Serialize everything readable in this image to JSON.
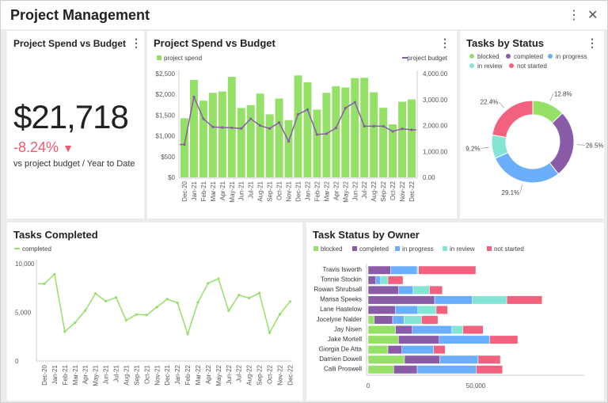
{
  "app": {
    "title": "Project Management",
    "more_icon": "kebab-icon",
    "close_icon": "close-icon"
  },
  "kpi": {
    "title": "Project Spend vs Budget",
    "value": "$21,718",
    "delta": "-8.24%",
    "delta_icon": "triangle-down-icon",
    "delta_color": "#ef5a6f",
    "caption": "vs project budget / Year to Date"
  },
  "chart_data": [
    {
      "type": "bar",
      "title": "Project Spend vs Budget",
      "categories": [
        "Dec-20",
        "Jan-21",
        "Feb-21",
        "Mar-21",
        "Apr-21",
        "May-21",
        "Jun-21",
        "Jul-21",
        "Aug-21",
        "Sep-21",
        "Oct-21",
        "Nov-21",
        "Dec-21",
        "Jan-22",
        "Feb-22",
        "Mar-22",
        "Apr-22",
        "May-22",
        "Jun-22",
        "Jul-22",
        "Aug-22",
        "Sep-22",
        "Oct-22",
        "Nov-22",
        "Dec-22"
      ],
      "series": [
        {
          "name": "project spend",
          "type": "bar",
          "axis": "left",
          "color": "#95e066",
          "values": [
            1424,
            2348,
            1848,
            2038,
            2070,
            2424,
            1671,
            1740,
            2019,
            1519,
            1899,
            1380,
            2456,
            2291,
            1633,
            2038,
            2196,
            2165,
            2392,
            2399,
            2051,
            1677,
            1278,
            1823,
            1880
          ]
        },
        {
          "name": "project budget",
          "type": "line",
          "axis": "right",
          "color": "#8a5ca8",
          "values": [
            1266,
            3099,
            2258,
            1944,
            1924,
            1914,
            1884,
            2258,
            1995,
            1884,
            2116,
            1387,
            2430,
            2613,
            1651,
            1681,
            1904,
            2673,
            2896,
            1975,
            1975,
            1975,
            1772,
            1873,
            1833
          ]
        }
      ],
      "ylim_left": [
        0,
        2500
      ],
      "yticks_left": [
        "$0",
        "$500",
        "$1,000",
        "$1,500",
        "$2,000",
        "$2,500"
      ],
      "ylim_right": [
        0,
        4000
      ],
      "yticks_right": [
        "0.00",
        "1,000.00",
        "2,000.00",
        "3,000.00",
        "4,000.00"
      ],
      "legend": "top"
    },
    {
      "type": "pie",
      "title": "Tasks by Status",
      "donut": true,
      "labels": [
        "blocked",
        "completed",
        "in progress",
        "in review",
        "not started"
      ],
      "values": [
        12.8,
        26.5,
        29.1,
        9.2,
        22.4
      ],
      "value_labels": [
        "12.8%",
        "26.5%",
        "29.1%",
        "9.2%",
        "22.4%"
      ],
      "colors": [
        "#95e066",
        "#8a5ca8",
        "#6aaefc",
        "#83e6d5",
        "#f2627e"
      ],
      "legend": "top"
    },
    {
      "type": "line",
      "title": "Tasks Completed",
      "categories": [
        "Dec-20",
        "Jan-21",
        "Feb-21",
        "Mar-21",
        "Apr-21",
        "May-21",
        "Jun-21",
        "Jul-21",
        "Aug-21",
        "Sep-21",
        "Oct-21",
        "Nov-21",
        "Dec-21",
        "Jan-22",
        "Feb-22",
        "Mar-22",
        "Apr-22",
        "May-22",
        "Jun-22",
        "Jul-22",
        "Aug-22",
        "Sep-22",
        "Oct-22",
        "Nov-22",
        "Dec-22"
      ],
      "series": [
        {
          "name": "completed",
          "color": "#95e066",
          "values": [
            7935,
            8913,
            3016,
            3940,
            5190,
            6929,
            6141,
            6522,
            4185,
            4783,
            4728,
            5543,
            6359,
            5978,
            2772,
            6033,
            7989,
            8451,
            5163,
            6766,
            6467,
            6984,
            2908,
            4810,
            6114
          ]
        }
      ],
      "ylim": [
        0,
        10000
      ],
      "yticks": [
        "0",
        "5,000",
        "10,000"
      ],
      "legend": "top-left"
    },
    {
      "type": "bar",
      "orientation": "horizontal",
      "stacked": true,
      "title": "Task Status by Owner",
      "categories": [
        "Travis Isworth",
        "Tonnie Stockin",
        "Rowan Shrubsall",
        "Marisa Speeks",
        "Lane Hastelow",
        "Jocelyne Nalder",
        "Jay Nisen",
        "Jake Mortell",
        "Giorgia De Atta",
        "Damien Dowell",
        "Calli Proswell"
      ],
      "series": [
        {
          "name": "blocked",
          "color": "#95e066",
          "values": [
            0,
            0,
            0,
            0,
            0,
            2800,
            12700,
            14100,
            9200,
            16900,
            11900
          ]
        },
        {
          "name": "completed",
          "color": "#8a5ca8",
          "values": [
            10500,
            3600,
            14200,
            30900,
            12600,
            8600,
            7800,
            18900,
            6500,
            16400,
            10900
          ]
        },
        {
          "name": "in progress",
          "color": "#6aaefc",
          "values": [
            12300,
            2200,
            6700,
            17500,
            10500,
            5300,
            18400,
            23500,
            14700,
            17800,
            27500
          ]
        },
        {
          "name": "in review",
          "color": "#83e6d5",
          "values": [
            600,
            3400,
            7600,
            16000,
            8500,
            8100,
            5100,
            0,
            0,
            0,
            0
          ]
        },
        {
          "name": "not started",
          "color": "#f2627e",
          "values": [
            26600,
            7000,
            6000,
            16400,
            5300,
            7600,
            9400,
            13000,
            5400,
            10300,
            12100
          ]
        }
      ],
      "xlim": [
        0,
        100000
      ],
      "xticks": [
        "0",
        "50,000"
      ],
      "legend": "top"
    }
  ]
}
